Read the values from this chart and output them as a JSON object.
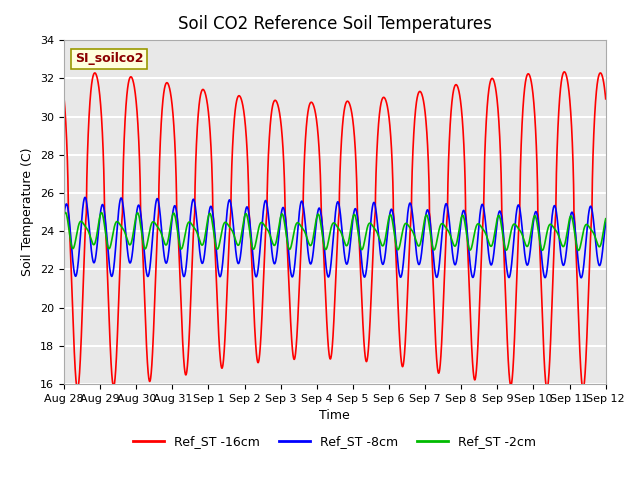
{
  "title": "Soil CO2 Reference Soil Temperatures",
  "xlabel": "Time",
  "ylabel": "Soil Temperature (C)",
  "ylim": [
    16,
    34
  ],
  "xlim_days": [
    0,
    15
  ],
  "background_color": "#ffffff",
  "plot_bg_color": "#e8e8e8",
  "grid_color": "#ffffff",
  "annotation_text": "SI_soilco2",
  "annotation_color": "#8b0000",
  "annotation_bg": "#ffffdd",
  "series": [
    {
      "label": "Ref_ST -16cm",
      "color": "#ff0000",
      "lw": 1.2
    },
    {
      "label": "Ref_ST -8cm",
      "color": "#0000ff",
      "lw": 1.2
    },
    {
      "label": "Ref_ST -2cm",
      "color": "#00bb00",
      "lw": 1.2
    }
  ],
  "x_tick_labels": [
    "Aug 28",
    "Aug 29",
    "Aug 30",
    "Aug 31",
    "Sep 1",
    "Sep 2",
    "Sep 3",
    "Sep 4",
    "Sep 5",
    "Sep 6",
    "Sep 7",
    "Sep 8",
    "Sep 9",
    "Sep 10",
    "Sep 11",
    "Sep 12"
  ],
  "x_tick_positions": [
    0,
    1,
    2,
    3,
    4,
    5,
    6,
    7,
    8,
    9,
    10,
    11,
    12,
    13,
    14,
    15
  ],
  "yticks": [
    16,
    18,
    20,
    22,
    24,
    26,
    28,
    30,
    32,
    34
  ]
}
